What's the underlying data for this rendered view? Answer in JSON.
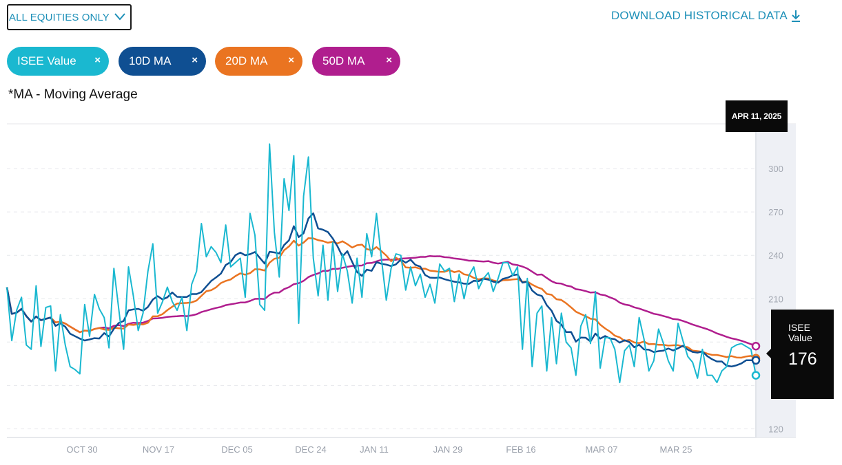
{
  "filter": {
    "label": "ALL EQUITIES ONLY",
    "icon": "chevron-down-icon"
  },
  "download": {
    "label": "DOWNLOAD HISTORICAL DATA",
    "icon": "download-icon"
  },
  "chips": [
    {
      "label": "ISEE Value",
      "color": "#1ab8d0",
      "close": "×"
    },
    {
      "label": "10D MA",
      "color": "#0f4f92",
      "close": "×"
    },
    {
      "label": "20D MA",
      "color": "#ea7421",
      "close": "×"
    },
    {
      "label": "50D MA",
      "color": "#b01e8e",
      "close": "×"
    }
  ],
  "note": "*MA - Moving Average",
  "tooltip": {
    "date": "APR 11, 2025",
    "label": "ISEE Value",
    "value": "176"
  },
  "chart_data": {
    "type": "line",
    "x_ticks": [
      "OCT 30",
      "NOV 17",
      "DEC 05",
      "DEC 24",
      "JAN 11",
      "JAN 29",
      "FEB 16",
      "MAR 07",
      "MAR 25"
    ],
    "y_ticks": [
      120,
      150,
      180,
      210,
      240,
      270,
      300
    ],
    "y_tick_labels": [
      "120",
      "",
      "",
      "210",
      "240",
      "270",
      "300"
    ],
    "ylim": [
      114,
      331
    ],
    "grid": true,
    "series": [
      {
        "name": "ISEE Value",
        "color": "#1ab8d0",
        "values": [
          218,
          181,
          202,
          211,
          178,
          175,
          219,
          177,
          204,
          205,
          160,
          199,
          178,
          163,
          161,
          158,
          206,
          184,
          213,
          203,
          197,
          176,
          231,
          203,
          175,
          232,
          212,
          188,
          200,
          229,
          248,
          200,
          208,
          218,
          208,
          202,
          211,
          188,
          220,
          229,
          262,
          239,
          246,
          242,
          235,
          261,
          232,
          235,
          238,
          211,
          269,
          254,
          206,
          202,
          317,
          256,
          225,
          293,
          271,
          309,
          193,
          281,
          308,
          238,
          212,
          247,
          209,
          249,
          215,
          241,
          229,
          207,
          238,
          211,
          255,
          239,
          269,
          238,
          209,
          231,
          241,
          240,
          216,
          232,
          219,
          227,
          211,
          220,
          207,
          234,
          229,
          231,
          208,
          227,
          210,
          226,
          232,
          217,
          224,
          228,
          215,
          224,
          235,
          235,
          226,
          232,
          175,
          224,
          163,
          200,
          205,
          160,
          197,
          165,
          200,
          180,
          176,
          157,
          191,
          199,
          179,
          215,
          162,
          183,
          183,
          175,
          152,
          174,
          178,
          163,
          197,
          182,
          160,
          167,
          189,
          179,
          167,
          160,
          193,
          181,
          170,
          166,
          155,
          175,
          157,
          157,
          152,
          160,
          163,
          176,
          178,
          179,
          177,
          175,
          157
        ],
        "values_trimmed": true
      }
    ]
  }
}
